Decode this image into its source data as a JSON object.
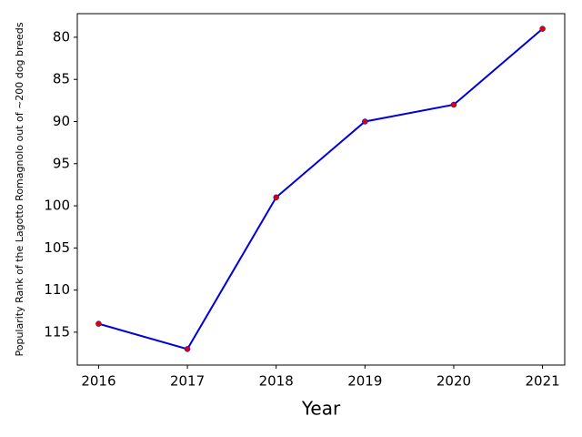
{
  "chart_data": {
    "type": "line",
    "x_label": "Year",
    "y_label": "Popularity Rank of the Lagotto Romagnolo out of ~200 dog breeds",
    "x": [
      2016,
      2017,
      2018,
      2019,
      2020,
      2021
    ],
    "series": [
      {
        "color": "#0000dd",
        "marker_color": "#dd0000",
        "values": [
          114,
          117,
          99,
          90,
          88,
          79
        ]
      }
    ],
    "xlim": [
      2015.76,
      2021.25
    ],
    "xticks": [
      2016,
      2017,
      2018,
      2019,
      2020,
      2021
    ],
    "ylim": [
      118.9,
      77.2
    ],
    "yticks": [
      80,
      85,
      90,
      95,
      100,
      105,
      110,
      115
    ]
  }
}
